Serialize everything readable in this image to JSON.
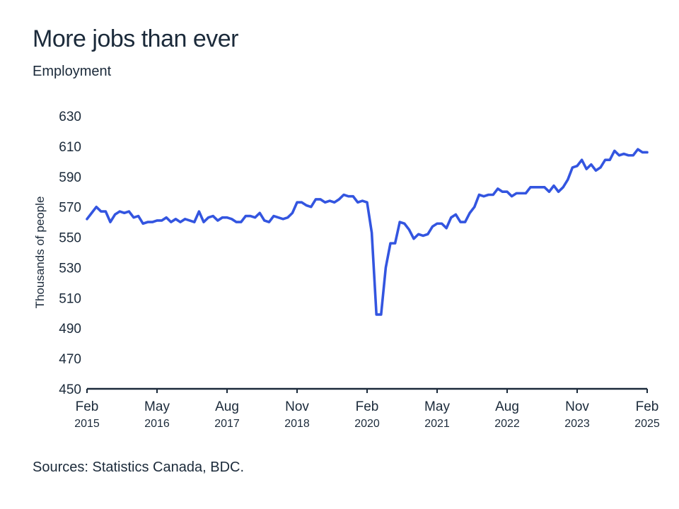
{
  "title": "More jobs than ever",
  "subtitle": "Employment",
  "source": "Sources: Statistics Canada, BDC.",
  "colors": {
    "line": "#3355e0",
    "axis": "#1b2a3a",
    "text": "#1b2a3a"
  },
  "chart_data": {
    "type": "line",
    "ylabel": "Thousands of people",
    "ylim": [
      450,
      630
    ],
    "yticks": [
      450,
      470,
      490,
      510,
      530,
      550,
      570,
      590,
      610,
      630
    ],
    "xticks": [
      {
        "month": "Feb",
        "year": "2015",
        "date": "2015-02"
      },
      {
        "month": "May",
        "year": "2016",
        "date": "2016-05"
      },
      {
        "month": "Aug",
        "year": "2017",
        "date": "2017-08"
      },
      {
        "month": "Nov",
        "year": "2018",
        "date": "2018-11"
      },
      {
        "month": "Feb",
        "year": "2020",
        "date": "2020-02"
      },
      {
        "month": "May",
        "year": "2021",
        "date": "2021-05"
      },
      {
        "month": "Aug",
        "year": "2022",
        "date": "2022-08"
      },
      {
        "month": "Nov",
        "year": "2023",
        "date": "2023-11"
      },
      {
        "month": "Feb",
        "year": "2025",
        "date": "2025-02"
      }
    ],
    "grid": false,
    "legend": "none",
    "series": [
      {
        "x": [
          "2015-02",
          "2015-03",
          "2015-04",
          "2015-05",
          "2015-06",
          "2015-07",
          "2015-08",
          "2015-09",
          "2015-10",
          "2015-11",
          "2015-12",
          "2016-01",
          "2016-02",
          "2016-03",
          "2016-04",
          "2016-05",
          "2016-06",
          "2016-07",
          "2016-08",
          "2016-09",
          "2016-10",
          "2016-11",
          "2016-12",
          "2017-01",
          "2017-02",
          "2017-03",
          "2017-04",
          "2017-05",
          "2017-06",
          "2017-07",
          "2017-08",
          "2017-09",
          "2017-10",
          "2017-11",
          "2017-12",
          "2018-01",
          "2018-02",
          "2018-03",
          "2018-04",
          "2018-05",
          "2018-06",
          "2018-07",
          "2018-08",
          "2018-09",
          "2018-10",
          "2018-11",
          "2018-12",
          "2019-01",
          "2019-02",
          "2019-03",
          "2019-04",
          "2019-05",
          "2019-06",
          "2019-07",
          "2019-08",
          "2019-09",
          "2019-10",
          "2019-11",
          "2019-12",
          "2020-01",
          "2020-02",
          "2020-03",
          "2020-04",
          "2020-05",
          "2020-06",
          "2020-07",
          "2020-08",
          "2020-09",
          "2020-10",
          "2020-11",
          "2020-12",
          "2021-01",
          "2021-02",
          "2021-03",
          "2021-04",
          "2021-05",
          "2021-06",
          "2021-07",
          "2021-08",
          "2021-09",
          "2021-10",
          "2021-11",
          "2021-12",
          "2022-01",
          "2022-02",
          "2022-03",
          "2022-04",
          "2022-05",
          "2022-06",
          "2022-07",
          "2022-08",
          "2022-09",
          "2022-10",
          "2022-11",
          "2022-12",
          "2023-01",
          "2023-02",
          "2023-03",
          "2023-04",
          "2023-05",
          "2023-06",
          "2023-07",
          "2023-08",
          "2023-09",
          "2023-10",
          "2023-11",
          "2023-12",
          "2024-01",
          "2024-02",
          "2024-03",
          "2024-04",
          "2024-05",
          "2024-06",
          "2024-07",
          "2024-08",
          "2024-09",
          "2024-10",
          "2024-11",
          "2024-12",
          "2025-01",
          "2025-02"
        ],
        "values": [
          562,
          566,
          570,
          567,
          567,
          560,
          565,
          567,
          566,
          567,
          563,
          564,
          559,
          560,
          560,
          561,
          561,
          563,
          560,
          562,
          560,
          562,
          561,
          560,
          567,
          560,
          563,
          564,
          561,
          563,
          563,
          562,
          560,
          560,
          564,
          564,
          563,
          566,
          561,
          560,
          564,
          563,
          562,
          563,
          566,
          573,
          573,
          571,
          570,
          575,
          575,
          573,
          574,
          573,
          575,
          578,
          577,
          577,
          573,
          574,
          573,
          553,
          499,
          499,
          530,
          546,
          546,
          560,
          559,
          555,
          549,
          552,
          551,
          552,
          557,
          559,
          559,
          556,
          563,
          565,
          560,
          560,
          566,
          570,
          578,
          577,
          578,
          578,
          582,
          580,
          580,
          577,
          579,
          579,
          579,
          583,
          583,
          583,
          583,
          580,
          584,
          580,
          583,
          588,
          596,
          597,
          601,
          595,
          598,
          594,
          596,
          601,
          601,
          607,
          604,
          605,
          604,
          604,
          608,
          606,
          606
        ]
      }
    ]
  }
}
